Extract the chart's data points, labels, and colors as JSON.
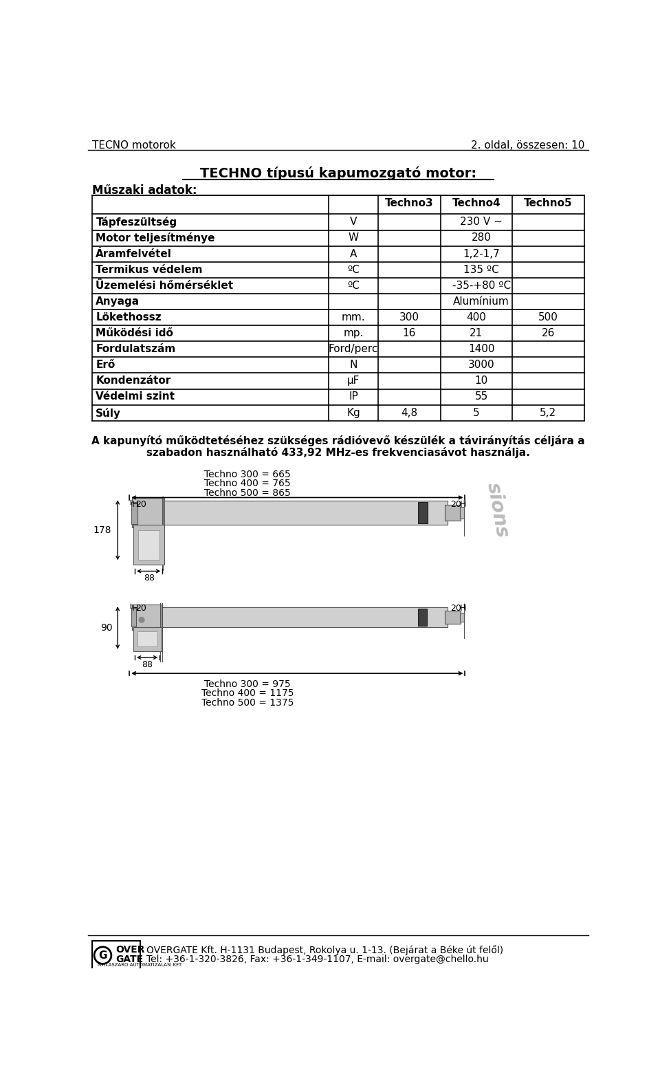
{
  "page_header_left": "TECNO motorok",
  "page_header_right": "2. oldal, összesen: 10",
  "main_title": "TECHNO típusú kapumozgató motor:",
  "section_label": "Műszaki adatok:",
  "col_headers": [
    "",
    "",
    "Techno3",
    "Techno4",
    "Techno5"
  ],
  "table_rows": [
    [
      "Tápfeszültség",
      "V",
      "230 V ~",
      "",
      ""
    ],
    [
      "Motor teljesítménye",
      "W",
      "280",
      "",
      ""
    ],
    [
      "Áramfelvétel",
      "A",
      "1,2-1,7",
      "",
      ""
    ],
    [
      "Termikus védelem",
      "ºC",
      "135 ºC",
      "",
      ""
    ],
    [
      "Üzemelési hőmérséklet",
      "ºC",
      "-35-+80 ºC",
      "",
      ""
    ],
    [
      "Anyaga",
      "",
      "Alumínium",
      "",
      ""
    ],
    [
      "Lökethossz",
      "mm.",
      "300",
      "400",
      "500"
    ],
    [
      "Működési idő",
      "mp.",
      "16",
      "21",
      "26"
    ],
    [
      "Fordulatszám",
      "Ford/perc",
      "1400",
      "",
      ""
    ],
    [
      "Erő",
      "N",
      "3000",
      "",
      ""
    ],
    [
      "Kondenzátor",
      "μF",
      "10",
      "",
      ""
    ],
    [
      "Védelmi szint",
      "IP",
      "55",
      "",
      ""
    ],
    [
      "Súly",
      "Kg",
      "4,8",
      "5",
      "5,2"
    ]
  ],
  "paragraph_line1": "A kapunyító működtetéséhez szükséges rádióvevő készülék a távirányítás céljára a",
  "paragraph_line2": "szabadon használható 433,92 MHz-es frekvenciasávot használja.",
  "diag1_labels": [
    "Techno 300 = 665",
    "Techno 400 = 765",
    "Techno 500 = 865"
  ],
  "diag2_labels": [
    "Techno 300 = 975",
    "Techno 400 = 1175",
    "Techno 500 = 1375"
  ],
  "footer_text_line1": "OVERGATE Kft. H-1131 Budapest, Rokolya u. 1-13. (Bejárat a Béke út felől)",
  "footer_text_line2": "Tel: +36-1-320-3826, Fax: +36-1-349-1107, E-mail: overgate@chello.hu",
  "bg_color": "#ffffff",
  "text_color": "#000000"
}
